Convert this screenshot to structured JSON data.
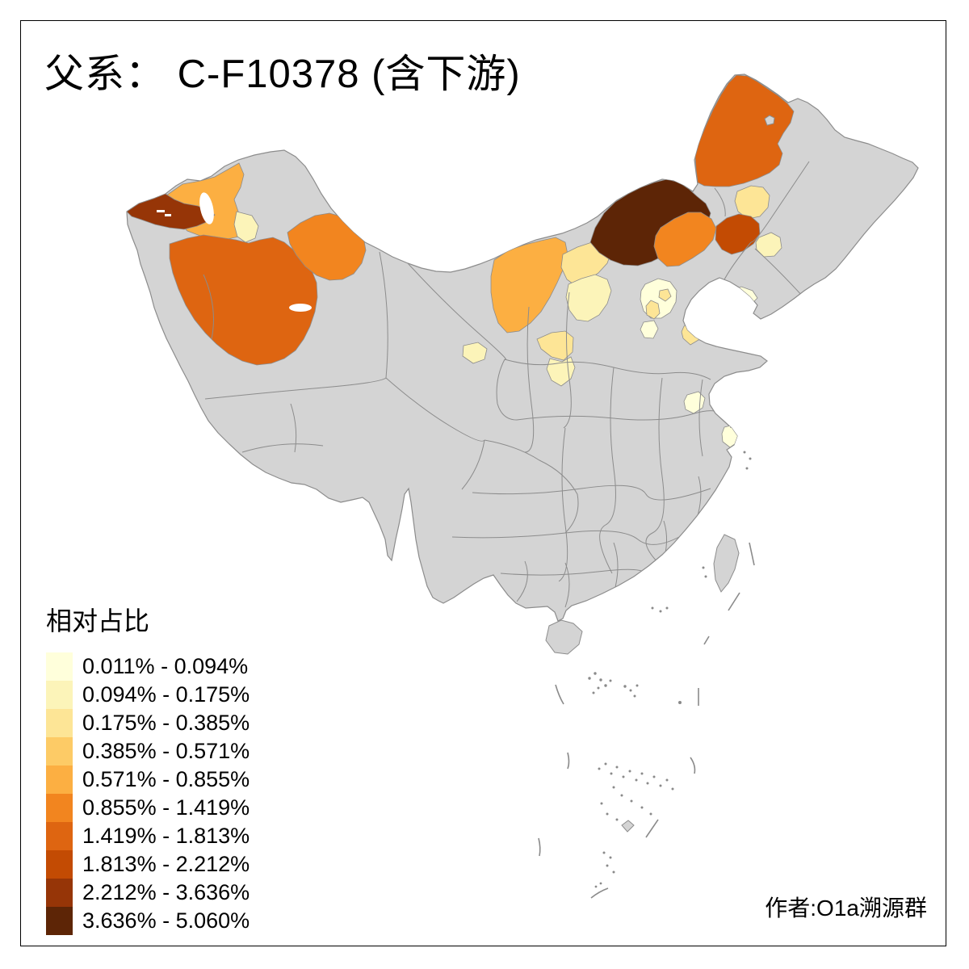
{
  "title": "父系： C-F10378 (含下游)",
  "attribution": "作者:O1a溯源群",
  "map": {
    "background": "#FFFFFF",
    "frame_color": "#000000",
    "base_fill": "#D4D4D4",
    "boundary_color": "#8C8C8C",
    "islet_color": "#8A8A8A"
  },
  "chart_data": {
    "type": "choropleth",
    "area_shown": "China, prefecture-level regions",
    "title": "父系： C-F10378 (含下游)",
    "legend_title": "相对占比",
    "unit": "%",
    "no_data_color": "#D4D4D4",
    "legend_position": "bottom-left",
    "classes": [
      {
        "label": "0.011% - 0.094%",
        "color": "#FFFFDB"
      },
      {
        "label": "0.094% - 0.175%",
        "color": "#FCF4B9"
      },
      {
        "label": "0.175% - 0.385%",
        "color": "#FDE596"
      },
      {
        "label": "0.385% - 0.571%",
        "color": "#FDCB66"
      },
      {
        "label": "0.571% - 0.855%",
        "color": "#FCAF42"
      },
      {
        "label": "0.855% - 1.419%",
        "color": "#F2851F"
      },
      {
        "label": "1.419% - 1.813%",
        "color": "#DE6511"
      },
      {
        "label": "1.813% - 2.212%",
        "color": "#C34B03"
      },
      {
        "label": "2.212% - 3.636%",
        "color": "#963507"
      },
      {
        "label": "3.636% - 5.060%",
        "color": "#5D2506"
      }
    ],
    "regions": [
      {
        "id": "west-tip",
        "location": "far west border nub",
        "range": "2.212% - 3.636%",
        "color": "#963507"
      },
      {
        "id": "north-xinjiang-band",
        "location": "northwest, northern band",
        "range": "0.571% - 0.855%",
        "color": "#FCAF42"
      },
      {
        "id": "north-xinjiang-pale",
        "location": "northwest, small pale sliver",
        "range": "0.094% - 0.175%",
        "color": "#FCF4B9"
      },
      {
        "id": "central-xinjiang",
        "location": "west, large central region",
        "range": "1.419% - 1.813%",
        "color": "#DE6511"
      },
      {
        "id": "east-xinjiang",
        "location": "west, eastern lobe",
        "range": "0.855% - 1.419%",
        "color": "#F2851F"
      },
      {
        "id": "west-inner-mongolia",
        "location": "north-central west block",
        "range": "0.571% - 0.855%",
        "color": "#FCAF42"
      },
      {
        "id": "north-bend-upper",
        "location": "river bend, upper band",
        "range": "0.175% - 0.385%",
        "color": "#FDE596"
      },
      {
        "id": "north-bend-lower",
        "location": "river bend, lower band",
        "range": "0.094% - 0.175%",
        "color": "#FCF4B9"
      },
      {
        "id": "ningxia-north",
        "location": "north-central small, upper",
        "range": "0.175% - 0.385%",
        "color": "#FDE596"
      },
      {
        "id": "ningxia-south",
        "location": "north-central small, lower",
        "range": "0.094% - 0.175%",
        "color": "#FCF4B9"
      },
      {
        "id": "gansu-west-small",
        "location": "central-west small patch",
        "range": "0.094% - 0.175%",
        "color": "#FCF4B9"
      },
      {
        "id": "north-central-dark",
        "location": "north border, large dark region",
        "range": "3.636% - 5.060%",
        "color": "#5D2506"
      },
      {
        "id": "northeast-large",
        "location": "northeast, large orange region",
        "range": "1.419% - 1.813%",
        "color": "#DE6511"
      },
      {
        "id": "northeast-pale",
        "location": "northeast, pale patch",
        "range": "0.175% - 0.385%",
        "color": "#FDE596"
      },
      {
        "id": "east-inner-mongolia",
        "location": "northeast, mid orange region",
        "range": "0.855% - 1.419%",
        "color": "#F2851F"
      },
      {
        "id": "northeast-dark-red",
        "location": "northeast, dark red region",
        "range": "1.813% - 2.212%",
        "color": "#C34B03"
      },
      {
        "id": "northeast-cream",
        "location": "northeast, cream patch",
        "range": "0.094% - 0.175%",
        "color": "#FCF4B9"
      },
      {
        "id": "liaodong-pale",
        "location": "peninsula by north gulf",
        "range": "0.011% - 0.094%",
        "color": "#FFFFDB"
      },
      {
        "id": "beijing-cream",
        "location": "capital area, cream region",
        "range": "0.011% - 0.094%",
        "color": "#FFFFDB"
      },
      {
        "id": "beijing-inner-small",
        "location": "capital area, small inner patch",
        "range": "0.175% - 0.385%",
        "color": "#FDE596"
      },
      {
        "id": "beijing-sw-small",
        "location": "capital area, southwest patch",
        "range": "0.175% - 0.385%",
        "color": "#FDE596"
      },
      {
        "id": "hebei-cream",
        "location": "south of capital, cream patch",
        "range": "0.011% - 0.094%",
        "color": "#FFFFDB"
      },
      {
        "id": "tianjin-coastal",
        "location": "gulf coast small patch",
        "range": "0.175% - 0.385%",
        "color": "#FDE596"
      },
      {
        "id": "jiangsu-pale",
        "location": "east coast, pale patch",
        "range": "0.011% - 0.094%",
        "color": "#FFFFDB"
      },
      {
        "id": "shanghai-pale",
        "location": "east coast river mouth patch",
        "range": "0.011% - 0.094%",
        "color": "#FFFFDB"
      }
    ]
  },
  "legend": {
    "title": "相对占比"
  }
}
